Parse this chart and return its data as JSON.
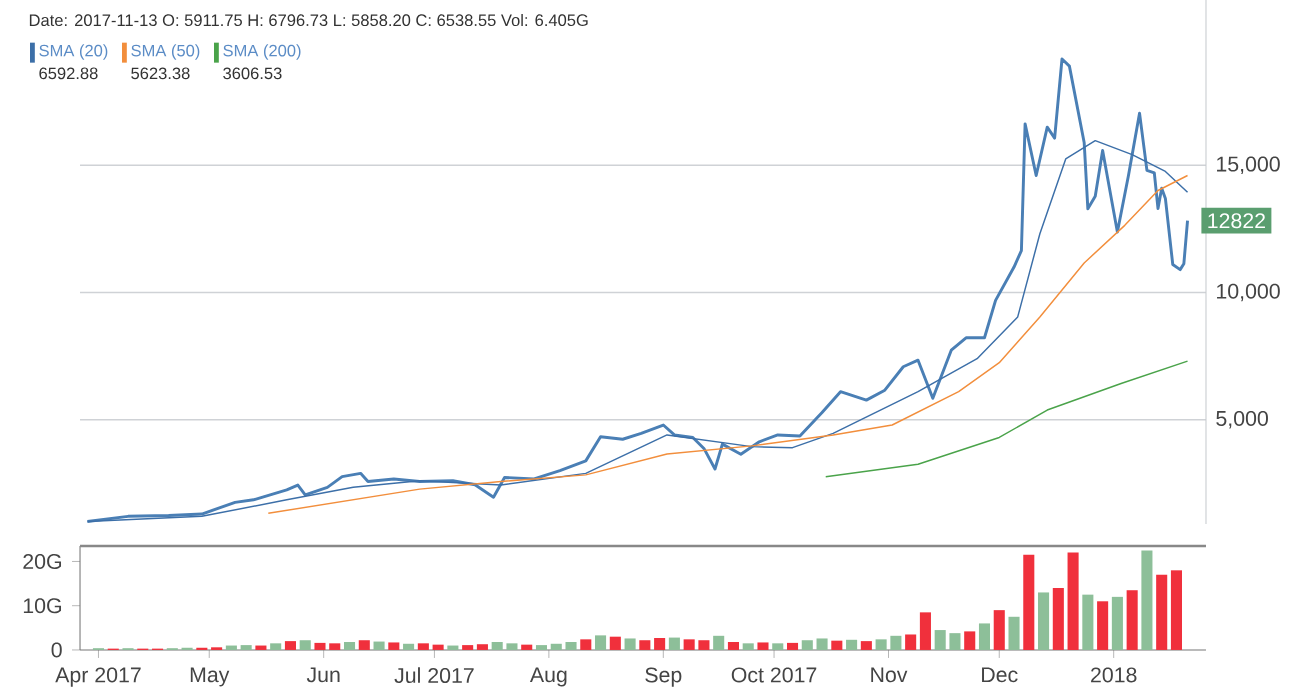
{
  "chart_data": [
    {
      "type": "line",
      "xlim": [
        "2017-03-27",
        "2018-01-26"
      ],
      "ylim": [
        900,
        21500
      ],
      "yticks": [
        {
          "value": 5000,
          "label": "5,000"
        },
        {
          "value": 10000,
          "label": "10,000"
        },
        {
          "value": 15000,
          "label": "15,000"
        }
      ],
      "grid": "y",
      "tick_labels": "y",
      "legend": "top left",
      "annotations": [
        "Date: 2017-11-13 O: 5911.75 H: 6796.73 L: 5858.20 C: 6538.55 Vol: 6.405G",
        "6592.88",
        "5623.38",
        "3606.53",
        {
          "text": "12822",
          "x": "2018-01-21",
          "y": 12822
        }
      ],
      "series": [
        {
          "color": "#4a7fb5",
          "x": [
            "2017-03-29",
            "2017-04-09",
            "2017-04-20",
            "2017-04-29",
            "2017-05-08",
            "2017-05-13",
            "2017-05-22",
            "2017-05-25",
            "2017-05-27",
            "2017-06-02",
            "2017-06-06",
            "2017-06-11",
            "2017-06-13",
            "2017-06-20",
            "2017-06-27",
            "2017-07-06",
            "2017-07-12",
            "2017-07-17",
            "2017-07-20",
            "2017-07-28",
            "2017-08-04",
            "2017-08-11",
            "2017-08-15",
            "2017-08-21",
            "2017-08-26",
            "2017-09-01",
            "2017-09-04",
            "2017-09-09",
            "2017-09-12",
            "2017-09-15",
            "2017-09-17",
            "2017-09-22",
            "2017-09-27",
            "2017-10-02",
            "2017-10-08",
            "2017-10-14",
            "2017-10-19",
            "2017-10-26",
            "2017-10-31",
            "2017-11-05",
            "2017-11-09",
            "2017-11-13",
            "2017-11-18",
            "2017-11-22",
            "2017-11-27",
            "2017-11-30",
            "2017-12-05",
            "2017-12-07",
            "2017-12-08",
            "2017-12-11",
            "2017-12-14",
            "2017-12-16",
            "2017-12-18",
            "2017-12-20",
            "2017-12-24",
            "2017-12-25",
            "2017-12-27",
            "2017-12-29",
            "2018-01-02",
            "2018-01-05",
            "2018-01-08",
            "2018-01-10",
            "2018-01-12",
            "2018-01-13",
            "2018-01-14",
            "2018-01-15",
            "2018-01-17",
            "2018-01-19",
            "2018-01-20",
            "2018-01-21"
          ],
          "values": [
            1000,
            1200,
            1230,
            1290,
            1750,
            1850,
            2240,
            2430,
            2040,
            2340,
            2760,
            2890,
            2570,
            2670,
            2570,
            2600,
            2440,
            1950,
            2730,
            2670,
            3000,
            3380,
            4330,
            4230,
            4460,
            4790,
            4400,
            4300,
            3870,
            3060,
            4040,
            3640,
            4130,
            4400,
            4360,
            5280,
            6100,
            5770,
            6160,
            7080,
            7340,
            5840,
            7730,
            8220,
            8220,
            9690,
            11000,
            11650,
            16630,
            14600,
            16500,
            16070,
            19180,
            18900,
            15900,
            13290,
            13780,
            15580,
            12380,
            14600,
            17050,
            14800,
            14700,
            13300,
            14100,
            13700,
            11100,
            10900,
            11130,
            12822
          ]
        },
        {
          "name": "SMA (20)",
          "color": "#3c6fa8",
          "x": [
            "2017-03-29",
            "2017-04-29",
            "2017-05-22",
            "2017-06-09",
            "2017-06-27",
            "2017-07-19",
            "2017-08-11",
            "2017-09-02",
            "2017-09-25",
            "2017-10-06",
            "2017-10-17",
            "2017-11-09",
            "2017-11-25",
            "2017-12-06",
            "2017-12-12",
            "2017-12-19",
            "2017-12-27",
            "2018-01-06",
            "2018-01-15",
            "2018-01-21"
          ],
          "values": [
            1000,
            1200,
            1850,
            2340,
            2600,
            2430,
            2890,
            4400,
            3940,
            3900,
            4460,
            6100,
            7400,
            9040,
            12310,
            15250,
            15970,
            15420,
            14760,
            13940
          ]
        },
        {
          "name": "SMA (50)",
          "color": "#f28e3c",
          "x": [
            "2017-05-17",
            "2017-06-27",
            "2017-07-19",
            "2017-08-11",
            "2017-09-02",
            "2017-09-25",
            "2017-10-17",
            "2017-11-02",
            "2017-11-20",
            "2017-12-01",
            "2017-12-12",
            "2017-12-24",
            "2018-01-04",
            "2018-01-13",
            "2018-01-21"
          ],
          "values": [
            1320,
            2270,
            2570,
            2830,
            3650,
            3970,
            4400,
            4790,
            6100,
            7240,
            9040,
            11160,
            12640,
            14010,
            14600
          ]
        },
        {
          "name": "SMA (200)",
          "color": "#4aa34a",
          "x": [
            "2017-10-15",
            "2017-11-09",
            "2017-12-01",
            "2017-12-14",
            "2018-01-03",
            "2018-01-21"
          ],
          "values": [
            2760,
            3250,
            4300,
            5380,
            6420,
            7300
          ]
        }
      ]
    },
    {
      "type": "bar",
      "xlim": [
        "2017-03-27",
        "2018-01-26"
      ],
      "ylim": [
        0,
        23.5
      ],
      "yticks": [
        0,
        {
          "value": 10,
          "label": "10G"
        },
        {
          "value": 20,
          "label": "20G"
        }
      ],
      "xticks": [
        {
          "value": "2017-04-01",
          "label": "Apr 2017"
        },
        {
          "value": "2017-05-01",
          "label": "May"
        },
        {
          "value": "2017-06-01",
          "label": "Jun"
        },
        {
          "value": "2017-07-01",
          "label": "Jul 2017"
        },
        {
          "value": "2017-08-01",
          "label": "Aug"
        },
        {
          "value": "2017-09-01",
          "label": "Sep"
        },
        {
          "value": "2017-10-01",
          "label": "Oct 2017"
        },
        {
          "value": "2017-11-01",
          "label": "Nov"
        },
        {
          "value": "2017-12-01",
          "label": "Dec"
        },
        {
          "value": "2018-01-01",
          "label": "2018"
        }
      ],
      "x": [
        "2017-04-01",
        "2017-04-05",
        "2017-04-09",
        "2017-04-13",
        "2017-04-17",
        "2017-04-21",
        "2017-04-25",
        "2017-04-29",
        "2017-05-03",
        "2017-05-07",
        "2017-05-11",
        "2017-05-15",
        "2017-05-19",
        "2017-05-23",
        "2017-05-27",
        "2017-05-31",
        "2017-06-04",
        "2017-06-08",
        "2017-06-12",
        "2017-06-16",
        "2017-06-20",
        "2017-06-24",
        "2017-06-28",
        "2017-07-02",
        "2017-07-06",
        "2017-07-10",
        "2017-07-14",
        "2017-07-18",
        "2017-07-22",
        "2017-07-26",
        "2017-07-30",
        "2017-08-03",
        "2017-08-07",
        "2017-08-11",
        "2017-08-15",
        "2017-08-19",
        "2017-08-23",
        "2017-08-27",
        "2017-08-31",
        "2017-09-04",
        "2017-09-08",
        "2017-09-12",
        "2017-09-16",
        "2017-09-20",
        "2017-09-24",
        "2017-09-28",
        "2017-10-02",
        "2017-10-06",
        "2017-10-10",
        "2017-10-14",
        "2017-10-18",
        "2017-10-22",
        "2017-10-26",
        "2017-10-30",
        "2017-11-03",
        "2017-11-07",
        "2017-11-11",
        "2017-11-15",
        "2017-11-19",
        "2017-11-23",
        "2017-11-27",
        "2017-12-01",
        "2017-12-05",
        "2017-12-09",
        "2017-12-13",
        "2017-12-17",
        "2017-12-21",
        "2017-12-25",
        "2017-12-29",
        "2018-01-02",
        "2018-01-06",
        "2018-01-10",
        "2018-01-14",
        "2018-01-18"
      ],
      "values": [
        0.4,
        0.3,
        0.4,
        0.3,
        0.3,
        0.4,
        0.5,
        0.5,
        0.6,
        1.0,
        1.1,
        1.0,
        1.5,
        2.0,
        2.2,
        1.6,
        1.5,
        1.8,
        2.2,
        1.9,
        1.7,
        1.4,
        1.5,
        1.2,
        1.0,
        1.1,
        1.3,
        1.8,
        1.5,
        1.2,
        1.1,
        1.4,
        1.8,
        2.4,
        3.3,
        3.0,
        2.6,
        2.2,
        2.7,
        2.8,
        2.4,
        2.2,
        3.2,
        1.8,
        1.5,
        1.7,
        1.5,
        1.6,
        2.2,
        2.6,
        2.1,
        2.3,
        2.0,
        2.4,
        3.2,
        3.5,
        8.5,
        4.5,
        3.8,
        4.2,
        6.0,
        9.0,
        7.5,
        21.5,
        13.0,
        14.0,
        22.0,
        12.5,
        11.0,
        12.0,
        13.5,
        22.5,
        17.0,
        18.0
      ],
      "colors": [
        "#8dbf99",
        "#f0303c",
        "#8dbf99",
        "#f0303c",
        "#f0303c",
        "#8dbf99",
        "#8dbf99",
        "#f0303c",
        "#f0303c",
        "#8dbf99",
        "#8dbf99",
        "#f0303c",
        "#8dbf99",
        "#f0303c",
        "#8dbf99",
        "#f0303c",
        "#f0303c",
        "#8dbf99",
        "#f0303c",
        "#8dbf99",
        "#f0303c",
        "#8dbf99",
        "#f0303c",
        "#f0303c",
        "#8dbf99",
        "#f0303c",
        "#f0303c",
        "#8dbf99",
        "#8dbf99",
        "#f0303c",
        "#8dbf99",
        "#8dbf99",
        "#8dbf99",
        "#f0303c",
        "#8dbf99",
        "#f0303c",
        "#8dbf99",
        "#f0303c",
        "#f0303c",
        "#8dbf99",
        "#f0303c",
        "#f0303c",
        "#8dbf99",
        "#f0303c",
        "#8dbf99",
        "#f0303c",
        "#8dbf99",
        "#f0303c",
        "#8dbf99",
        "#8dbf99",
        "#f0303c",
        "#8dbf99",
        "#f0303c",
        "#8dbf99",
        "#8dbf99",
        "#f0303c",
        "#f0303c",
        "#8dbf99",
        "#8dbf99",
        "#f0303c",
        "#8dbf99",
        "#f0303c",
        "#8dbf99",
        "#f0303c",
        "#8dbf99",
        "#f0303c",
        "#f0303c",
        "#8dbf99",
        "#f0303c",
        "#8dbf99",
        "#f0303c",
        "#8dbf99",
        "#f0303c",
        "#f0303c"
      ]
    }
  ]
}
